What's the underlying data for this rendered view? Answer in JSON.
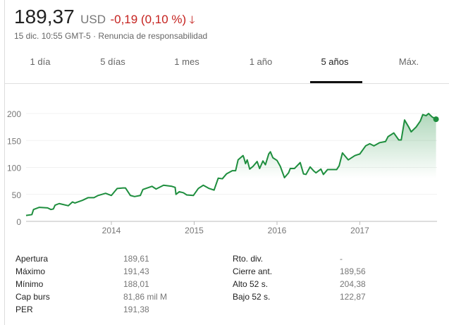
{
  "quote": {
    "price": "189,37",
    "currency": "USD",
    "change": "-0,19 (0,10 %)",
    "direction": "down",
    "timestamp": "15 dic. 10:55 GMT-5",
    "separator": "·",
    "disclaimer": "Renuncia de responsabilidad",
    "down_color": "#c5221f"
  },
  "tabs": [
    {
      "label": "1 día"
    },
    {
      "label": "5 días"
    },
    {
      "label": "1 mes"
    },
    {
      "label": "1 año"
    },
    {
      "label": "5 años",
      "active": true
    },
    {
      "label": "Máx."
    }
  ],
  "chart_data": {
    "type": "area",
    "xlabel": "",
    "ylabel": "",
    "x_unit": "year",
    "xlim": [
      2012.97,
      2017.92
    ],
    "ylim": [
      0,
      200
    ],
    "x_ticks": [
      "2014",
      "2015",
      "2016",
      "2017"
    ],
    "y_ticks": [
      "0",
      "50",
      "100",
      "150",
      "200"
    ],
    "grid": true,
    "line_color": "#1e8e3e",
    "series": [
      {
        "x": [
          2012.97,
          2013.04,
          2013.06,
          2013.13,
          2013.23,
          2013.27,
          2013.3,
          2013.32,
          2013.37,
          2013.48,
          2013.53,
          2013.56,
          2013.65,
          2013.72,
          2013.79,
          2013.84,
          2013.93,
          2014.0,
          2014.07,
          2014.14,
          2014.17,
          2014.23,
          2014.28,
          2014.35,
          2014.38,
          2014.49,
          2014.54,
          2014.63,
          2014.73,
          2014.77,
          2014.78,
          2014.82,
          2014.87,
          2014.91,
          2014.99,
          2015.05,
          2015.11,
          2015.18,
          2015.24,
          2015.29,
          2015.34,
          2015.39,
          2015.46,
          2015.5,
          2015.53,
          2015.59,
          2015.6,
          2015.62,
          2015.64,
          2015.67,
          2015.71,
          2015.76,
          2015.79,
          2015.83,
          2015.86,
          2015.9,
          2015.92,
          2015.95,
          2016.0,
          2016.04,
          2016.09,
          2016.14,
          2016.16,
          2016.21,
          2016.28,
          2016.32,
          2016.35,
          2016.4,
          2016.44,
          2016.47,
          2016.53,
          2016.56,
          2016.61,
          2016.72,
          2016.75,
          2016.79,
          2016.86,
          2016.94,
          2017.0,
          2017.07,
          2017.12,
          2017.17,
          2017.24,
          2017.31,
          2017.34,
          2017.41,
          2017.47,
          2017.5,
          2017.54,
          2017.59,
          2017.62,
          2017.68,
          2017.73,
          2017.76,
          2017.8,
          2017.83,
          2017.87,
          2017.92
        ],
        "values": [
          11,
          12.5,
          22,
          26,
          25,
          22,
          23,
          30,
          33,
          29,
          36,
          34,
          39,
          44,
          44,
          48,
          52,
          48,
          61,
          62,
          62,
          48,
          46,
          48,
          59,
          65,
          60,
          67,
          65,
          63,
          50,
          55,
          53,
          49,
          48,
          61,
          67,
          61,
          58,
          80,
          79,
          88,
          94,
          94,
          114,
          122,
          118,
          107,
          114,
          97,
          102,
          111,
          98,
          112,
          105,
          125,
          129,
          118,
          113,
          102,
          81,
          90,
          98,
          98,
          109,
          88,
          87,
          101,
          94,
          90,
          97,
          87,
          96,
          96,
          103,
          127,
          114,
          122,
          125,
          140,
          144,
          140,
          146,
          148,
          157,
          164,
          151,
          151,
          188,
          175,
          166,
          175,
          186,
          198,
          196,
          200,
          194,
          189.37
        ]
      }
    ]
  },
  "stats": {
    "left": [
      {
        "label": "Apertura",
        "value": "189,61"
      },
      {
        "label": "Máximo",
        "value": "191,43"
      },
      {
        "label": "Mínimo",
        "value": "188,01"
      },
      {
        "label": "Cap burs",
        "value": "81,86 mil M"
      },
      {
        "label": "PER",
        "value": "191,38"
      }
    ],
    "right": [
      {
        "label": "Rto. div.",
        "value": "-"
      },
      {
        "label": "Cierre ant.",
        "value": "189,56"
      },
      {
        "label": "Alto 52 s.",
        "value": "204,38"
      },
      {
        "label": "Bajo 52 s.",
        "value": "122,87"
      }
    ]
  }
}
